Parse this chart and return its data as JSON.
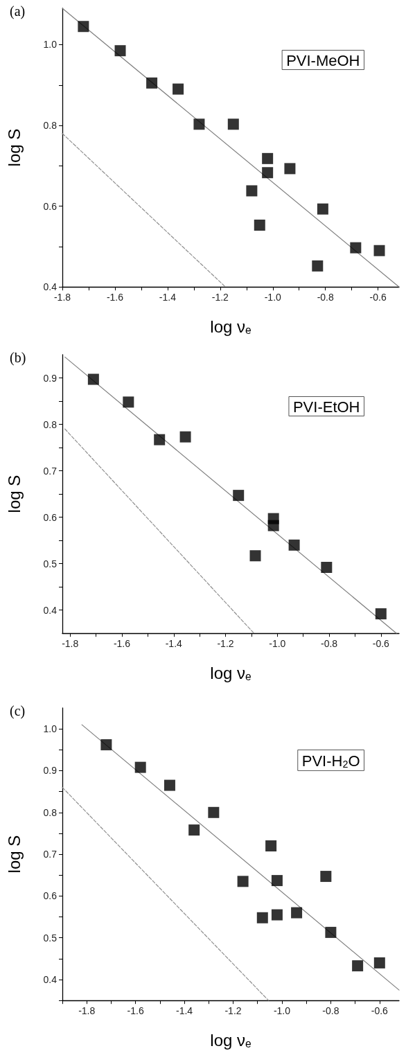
{
  "chart_data": [
    {
      "type": "scatter",
      "xlabel": "log ν$_{e}$",
      "ylabel": "log S",
      "annotations": [
        "(a)",
        "PVI-MeOH"
      ],
      "marker": "square",
      "grid": false,
      "xlim": [
        -1.8,
        -0.52
      ],
      "xticks": [
        -1.8,
        {
          "value": -1.7,
          "label": null
        },
        -1.6,
        {
          "value": -1.5,
          "label": null
        },
        -1.4,
        {
          "value": -1.3,
          "label": null
        },
        -1.2,
        {
          "value": -1.1,
          "label": null
        },
        {
          "value": -1,
          "label": "-1.0"
        },
        {
          "value": -0.9,
          "label": null
        },
        -0.8,
        {
          "value": -0.7,
          "label": null
        },
        -0.6
      ],
      "ylim": [
        0.4,
        1.09
      ],
      "yticks": [
        0.4,
        {
          "value": 0.5,
          "label": null
        },
        0.6,
        {
          "value": 0.7,
          "label": null
        },
        0.8,
        {
          "value": 0.9,
          "label": null
        },
        {
          "value": 1,
          "label": "1.0"
        }
      ],
      "series": [
        {
          "color": "#000000",
          "x": [
            -1.72,
            -1.58,
            -1.46,
            -1.36,
            -1.28,
            -1.15,
            -1.02,
            -1.02,
            -0.935,
            -1.08,
            -1.05,
            -0.81,
            -0.83,
            -0.685,
            -0.595
          ],
          "values": [
            1.045,
            0.985,
            0.905,
            0.89,
            0.803,
            0.803,
            0.718,
            0.683,
            0.693,
            0.638,
            0.553,
            0.593,
            0.452,
            0.497,
            0.49
          ]
        },
        {
          "type": "line",
          "color": "#808080",
          "line_style": "solid",
          "marker": "none",
          "x": [
            -1.8,
            -0.52
          ],
          "values": [
            1.09,
            0.4
          ]
        },
        {
          "type": "line",
          "color": "#909090",
          "line_style": "dashed",
          "marker": "none",
          "x": [
            -1.8,
            -1.18
          ],
          "values": [
            0.78,
            0.4
          ]
        }
      ]
    },
    {
      "type": "scatter",
      "xlabel": "log ν$_{e}$",
      "ylabel": "log S",
      "annotations": [
        "(b)",
        "PVI-EtOH"
      ],
      "marker": "square",
      "grid": false,
      "xlim": [
        -1.83,
        -0.53
      ],
      "xticks": [
        -1.8,
        {
          "value": -1.7,
          "label": null
        },
        -1.6,
        {
          "value": -1.5,
          "label": null
        },
        -1.4,
        {
          "value": -1.3,
          "label": null
        },
        -1.2,
        {
          "value": -1.1,
          "label": null
        },
        {
          "value": -1,
          "label": "-1.0"
        },
        {
          "value": -0.9,
          "label": null
        },
        -0.8,
        {
          "value": -0.7,
          "label": null
        },
        -0.6
      ],
      "ylim": [
        0.35,
        0.95
      ],
      "yticks": [
        0.4,
        {
          "value": 0.45,
          "label": null
        },
        0.5,
        {
          "value": 0.55,
          "label": null
        },
        0.6,
        {
          "value": 0.65,
          "label": null
        },
        0.7,
        {
          "value": 0.75,
          "label": null
        },
        0.8,
        {
          "value": 0.85,
          "label": null
        },
        0.9
      ],
      "series": [
        {
          "color": "#000000",
          "x": [
            -1.71,
            -1.575,
            -1.455,
            -1.355,
            -1.15,
            -1.015,
            -1.015,
            -1.085,
            -0.935,
            -0.81,
            -0.6
          ],
          "values": [
            0.897,
            0.848,
            0.767,
            0.773,
            0.647,
            0.597,
            0.582,
            0.517,
            0.54,
            0.492,
            0.392
          ]
        },
        {
          "type": "line",
          "color": "#808080",
          "line_style": "solid",
          "marker": "none",
          "x": [
            -1.82,
            -0.54
          ],
          "values": [
            0.945,
            0.35
          ]
        },
        {
          "type": "line",
          "color": "#909090",
          "line_style": "dashed",
          "marker": "none",
          "x": [
            -1.82,
            -1.09
          ],
          "values": [
            0.79,
            0.35
          ]
        }
      ]
    },
    {
      "type": "scatter",
      "xlabel": "log ν$_{e}$",
      "ylabel": "log S",
      "annotations": [
        "(c)",
        "PVI-H$_{2}$O"
      ],
      "marker": "square",
      "grid": false,
      "xlim": [
        -1.9,
        -0.52
      ],
      "xticks": [
        {
          "value": -1.9,
          "label": null
        },
        -1.8,
        {
          "value": -1.7,
          "label": null
        },
        -1.6,
        {
          "value": -1.5,
          "label": null
        },
        -1.4,
        {
          "value": -1.3,
          "label": null
        },
        -1.2,
        {
          "value": -1.1,
          "label": null
        },
        {
          "value": -1,
          "label": "-1.0"
        },
        {
          "value": -0.9,
          "label": null
        },
        -0.8,
        {
          "value": -0.7,
          "label": null
        },
        -0.6
      ],
      "ylim": [
        0.35,
        1.05
      ],
      "yticks": [
        {
          "value": 0.35,
          "label": null
        },
        0.4,
        {
          "value": 0.45,
          "label": null
        },
        0.5,
        {
          "value": 0.55,
          "label": null
        },
        0.6,
        {
          "value": 0.65,
          "label": null
        },
        0.7,
        {
          "value": 0.75,
          "label": null
        },
        0.8,
        {
          "value": 0.85,
          "label": null
        },
        0.9,
        {
          "value": 0.95,
          "label": null
        },
        {
          "value": 1,
          "label": "1.0"
        }
      ],
      "series": [
        {
          "color": "#000000",
          "x": [
            -1.72,
            -1.58,
            -1.46,
            -1.36,
            -1.28,
            -1.16,
            -1.045,
            -1.02,
            -1.08,
            -1.02,
            -0.94,
            -0.82,
            -0.8,
            -0.69,
            -0.6
          ],
          "values": [
            0.962,
            0.908,
            0.865,
            0.758,
            0.8,
            0.635,
            0.72,
            0.637,
            0.548,
            0.555,
            0.56,
            0.647,
            0.513,
            0.433,
            0.44
          ]
        },
        {
          "type": "line",
          "color": "#808080",
          "line_style": "solid",
          "marker": "none",
          "x": [
            -1.82,
            -0.52
          ],
          "values": [
            1.01,
            0.375
          ]
        },
        {
          "type": "line",
          "color": "#909090",
          "line_style": "dashed",
          "marker": "none",
          "x": [
            -1.9,
            -1.055
          ],
          "values": [
            0.86,
            0.35
          ]
        }
      ]
    }
  ]
}
